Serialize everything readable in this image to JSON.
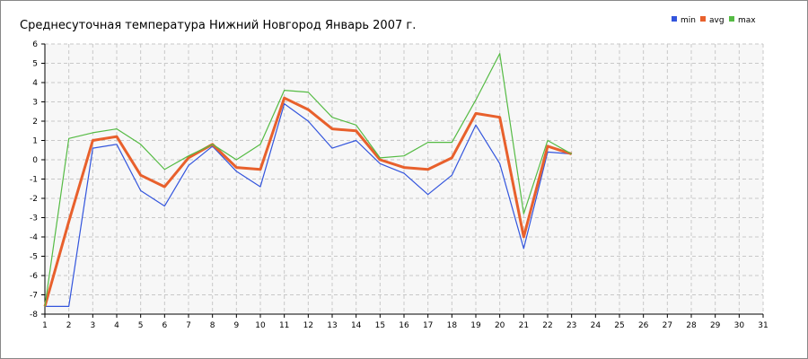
{
  "chart_data": {
    "type": "line",
    "title": "Среднесуточная температура Нижний Новгород  Январь 2007 г.",
    "x": [
      1,
      2,
      3,
      4,
      5,
      6,
      7,
      8,
      9,
      10,
      11,
      12,
      13,
      14,
      15,
      16,
      17,
      18,
      19,
      20,
      21,
      22,
      23
    ],
    "series": [
      {
        "name": "min",
        "color": "#3355dd",
        "values": [
          -7.6,
          -7.6,
          0.6,
          0.8,
          -1.6,
          -2.4,
          -0.3,
          0.7,
          -0.6,
          -1.4,
          2.9,
          2.0,
          0.6,
          1.0,
          -0.2,
          -0.7,
          -1.8,
          -0.8,
          1.8,
          -0.2,
          -4.6,
          0.4,
          0.3
        ]
      },
      {
        "name": "avg",
        "color": "#e8602c",
        "values": [
          -7.6,
          -3.2,
          1.0,
          1.2,
          -0.8,
          -1.4,
          0.1,
          0.8,
          -0.4,
          -0.5,
          3.2,
          2.6,
          1.6,
          1.5,
          0.0,
          -0.4,
          -0.5,
          0.1,
          2.4,
          2.2,
          -4.0,
          0.7,
          0.3
        ]
      },
      {
        "name": "max",
        "color": "#55bb44",
        "values": [
          -7.6,
          1.1,
          1.4,
          1.6,
          0.8,
          -0.5,
          0.2,
          0.8,
          0.0,
          0.8,
          3.6,
          3.5,
          2.2,
          1.8,
          0.1,
          0.2,
          0.9,
          0.9,
          3.1,
          5.5,
          -2.8,
          1.0,
          0.3
        ]
      }
    ],
    "xlim": [
      1,
      31
    ],
    "xticks": [
      1,
      2,
      3,
      4,
      5,
      6,
      7,
      8,
      9,
      10,
      11,
      12,
      13,
      14,
      15,
      16,
      17,
      18,
      19,
      20,
      21,
      22,
      23,
      24,
      25,
      26,
      27,
      28,
      29,
      30,
      31
    ],
    "ylim": [
      -8,
      6
    ],
    "yticks": [
      -8,
      -7,
      -6,
      -5,
      -4,
      -3,
      -2,
      -1,
      0,
      1,
      2,
      3,
      4,
      5,
      6
    ],
    "grid": true,
    "legend": "top-right"
  }
}
